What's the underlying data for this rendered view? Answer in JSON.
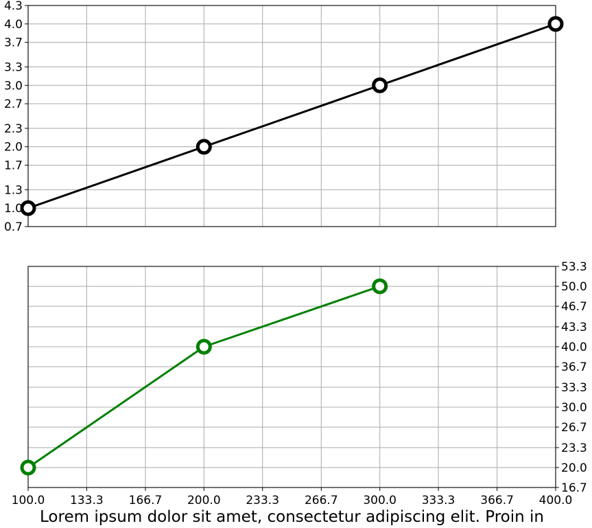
{
  "chart_data": [
    {
      "type": "line",
      "x": [
        100.0,
        200.0,
        300.0,
        400.0
      ],
      "series": [
        {
          "values": [
            1.0,
            2.0,
            3.0,
            4.0
          ],
          "color": "#000000",
          "marker": "hollow-circle"
        }
      ],
      "xlim": [
        100.0,
        400.0
      ],
      "ylim": [
        0.7,
        4.3
      ],
      "xticks": [
        "100.0",
        "133.3",
        "166.7",
        "200.0",
        "233.3",
        "266.7",
        "300.0",
        "333.3",
        "366.7",
        "400.0"
      ],
      "yticks": [
        "0.7",
        "1.0",
        "1.3",
        "1.7",
        "2.0",
        "2.3",
        "2.7",
        "3.0",
        "3.3",
        "3.7",
        "4.0",
        "4.3"
      ],
      "x_tick_labels_shown": false,
      "y_axis_side": "left",
      "grid": true
    },
    {
      "type": "line",
      "x": [
        100.0,
        200.0,
        300.0
      ],
      "series": [
        {
          "values": [
            20.0,
            40.0,
            50.0
          ],
          "color": "#008000",
          "marker": "hollow-circle"
        }
      ],
      "xlim": [
        100.0,
        400.0
      ],
      "ylim": [
        16.7,
        53.3
      ],
      "xticks": [
        "100.0",
        "133.3",
        "166.7",
        "200.0",
        "233.3",
        "266.7",
        "300.0",
        "333.3",
        "366.7",
        "400.0"
      ],
      "yticks": [
        "16.7",
        "20.0",
        "23.3",
        "26.7",
        "30.0",
        "33.3",
        "36.7",
        "40.0",
        "43.3",
        "46.7",
        "50.0",
        "53.3"
      ],
      "x_tick_labels_shown": true,
      "y_axis_side": "right",
      "grid": true
    }
  ],
  "caption": "Lorem ipsum dolor sit amet, consectetur adipiscing elit. Proin in",
  "colors": {
    "grid": "#b0b0b0",
    "axes": "#000000"
  }
}
